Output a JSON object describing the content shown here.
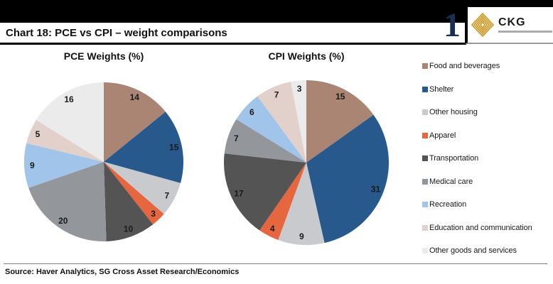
{
  "header": {
    "title": "Chart 18: PCE vs CPI – weight comparisons",
    "page_number": "1",
    "logo_text": "CKG",
    "navy": "#1B2F55",
    "gold": "#C9971F"
  },
  "chart_data": [
    {
      "type": "pie",
      "title": "PCE Weights (%)",
      "categories": [
        "Food and beverages",
        "Shelter",
        "Other housing",
        "Apparel",
        "Transportation",
        "Medical care",
        "Recreation",
        "Education and communication",
        "Other goods and services"
      ],
      "values": [
        14,
        15,
        7,
        3,
        10,
        20,
        9,
        5,
        16
      ],
      "colors": [
        "#AA8573",
        "#27598D",
        "#C8CACE",
        "#E5663F",
        "#545454",
        "#93969B",
        "#A0C4EA",
        "#E2D0CA",
        "#EBEBEC"
      ],
      "start_angle_deg": 0,
      "direction": "clockwise",
      "data_labels": "values"
    },
    {
      "type": "pie",
      "title": "CPI Weights (%)",
      "categories": [
        "Food and beverages",
        "Shelter",
        "Other housing",
        "Apparel",
        "Transportation",
        "Medical care",
        "Recreation",
        "Education and communication",
        "Other goods and services"
      ],
      "values": [
        15,
        31,
        9,
        4,
        17,
        7,
        6,
        7,
        3
      ],
      "colors": [
        "#AA8573",
        "#27598D",
        "#C8CACE",
        "#E5663F",
        "#545454",
        "#93969B",
        "#A0C4EA",
        "#E2D0CA",
        "#EBEBEC"
      ],
      "start_angle_deg": 0,
      "direction": "clockwise",
      "data_labels": "values"
    }
  ],
  "legend": {
    "position": "right",
    "items": [
      {
        "label": "Food and beverages",
        "color": "#AA8573"
      },
      {
        "label": "Shelter",
        "color": "#27598D"
      },
      {
        "label": "Other housing",
        "color": "#C8CACE"
      },
      {
        "label": "Apparel",
        "color": "#E5663F"
      },
      {
        "label": "Transportation",
        "color": "#545454"
      },
      {
        "label": "Medical care",
        "color": "#93969B"
      },
      {
        "label": "Recreation",
        "color": "#A0C4EA"
      },
      {
        "label": "Education and communication",
        "color": "#E2D0CA"
      },
      {
        "label": "Other goods and services",
        "color": "#EBEBEC"
      }
    ]
  },
  "footer": {
    "source": "Source: Haver Analytics, SG Cross Asset Research/Economics"
  }
}
